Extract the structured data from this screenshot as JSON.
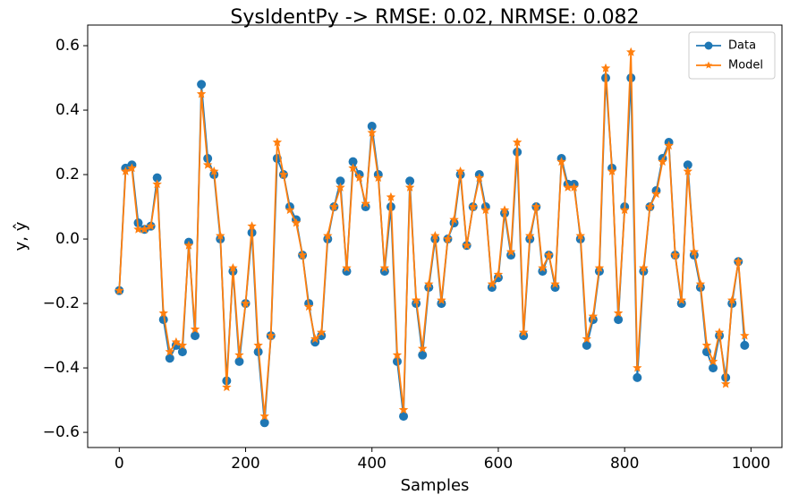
{
  "chart_data": {
    "type": "line",
    "title": "SysIdentPy -> RMSE: 0.02, NRMSE: 0.082",
    "x_label": "Samples",
    "y_label": "y, ŷ",
    "x": [
      0,
      10,
      20,
      30,
      40,
      50,
      60,
      70,
      80,
      90,
      100,
      110,
      120,
      130,
      140,
      150,
      160,
      170,
      180,
      190,
      200,
      210,
      220,
      230,
      240,
      250,
      260,
      270,
      280,
      290,
      300,
      310,
      320,
      330,
      340,
      350,
      360,
      370,
      380,
      390,
      400,
      410,
      420,
      430,
      440,
      450,
      460,
      470,
      480,
      490,
      500,
      510,
      520,
      530,
      540,
      550,
      560,
      570,
      580,
      590,
      600,
      610,
      620,
      630,
      640,
      650,
      660,
      670,
      680,
      690,
      700,
      710,
      720,
      730,
      740,
      750,
      760,
      770,
      780,
      790,
      800,
      810,
      820,
      830,
      840,
      850,
      860,
      870,
      880,
      890,
      900,
      910,
      920,
      930,
      940,
      950,
      960,
      970,
      980,
      990
    ],
    "series": [
      {
        "name": "Data",
        "color": "#1f77b4",
        "marker": "circle",
        "values": [
          -0.16,
          0.22,
          0.23,
          0.05,
          0.03,
          0.04,
          0.19,
          -0.25,
          -0.37,
          -0.33,
          -0.35,
          -0.01,
          -0.3,
          0.48,
          0.25,
          0.2,
          0.0,
          -0.44,
          -0.1,
          -0.38,
          -0.2,
          0.02,
          -0.35,
          -0.57,
          -0.3,
          0.25,
          0.2,
          0.1,
          0.06,
          -0.05,
          -0.2,
          -0.32,
          -0.3,
          0.0,
          0.1,
          0.18,
          -0.1,
          0.24,
          0.2,
          0.1,
          0.35,
          0.2,
          -0.1,
          0.1,
          -0.38,
          -0.55,
          0.18,
          -0.2,
          -0.36,
          -0.15,
          0.0,
          -0.2,
          0.0,
          0.05,
          0.2,
          -0.02,
          0.1,
          0.2,
          0.1,
          -0.15,
          -0.12,
          0.08,
          -0.05,
          0.27,
          -0.3,
          0.0,
          0.1,
          -0.1,
          -0.05,
          -0.15,
          0.25,
          0.17,
          0.17,
          0.0,
          -0.33,
          -0.25,
          -0.1,
          0.5,
          0.22,
          -0.25,
          0.1,
          0.5,
          -0.43,
          -0.1,
          0.1,
          0.15,
          0.25,
          0.3,
          -0.05,
          -0.2,
          0.23,
          -0.05,
          -0.15,
          -0.35,
          -0.4,
          -0.3,
          -0.43,
          -0.2,
          -0.07,
          -0.33
        ]
      },
      {
        "name": "Model",
        "color": "#ff7f0e",
        "marker": "star",
        "values": [
          -0.16,
          0.21,
          0.22,
          0.03,
          0.03,
          0.04,
          0.17,
          -0.23,
          -0.35,
          -0.32,
          -0.33,
          -0.02,
          -0.28,
          0.45,
          0.23,
          0.21,
          0.01,
          -0.46,
          -0.09,
          -0.36,
          -0.2,
          0.04,
          -0.33,
          -0.55,
          -0.3,
          0.3,
          0.2,
          0.09,
          0.05,
          -0.05,
          -0.21,
          -0.31,
          -0.29,
          0.01,
          0.1,
          0.16,
          -0.09,
          0.22,
          0.19,
          0.11,
          0.33,
          0.19,
          -0.09,
          0.13,
          -0.36,
          -0.53,
          0.16,
          -0.19,
          -0.34,
          -0.14,
          0.01,
          -0.19,
          0.0,
          0.06,
          0.21,
          -0.02,
          0.1,
          0.19,
          0.09,
          -0.14,
          -0.11,
          0.09,
          -0.04,
          0.3,
          -0.29,
          0.01,
          0.1,
          -0.09,
          -0.05,
          -0.14,
          0.24,
          0.16,
          0.16,
          0.01,
          -0.31,
          -0.24,
          -0.09,
          0.53,
          0.21,
          -0.23,
          0.09,
          0.58,
          -0.4,
          -0.09,
          0.1,
          0.14,
          0.24,
          0.29,
          -0.05,
          -0.19,
          0.21,
          -0.04,
          -0.14,
          -0.33,
          -0.38,
          -0.29,
          -0.45,
          -0.19,
          -0.07,
          -0.3
        ]
      }
    ],
    "xlim": [
      -50,
      1049
    ],
    "ylim": [
      -0.647,
      0.664
    ],
    "xticks": [
      0,
      200,
      400,
      600,
      800,
      1000
    ],
    "yticks": [
      {
        "value": -0.6,
        "label": "−0.6"
      },
      {
        "value": -0.4,
        "label": "−0.4"
      },
      {
        "value": -0.2,
        "label": "−0.2"
      },
      {
        "value": 0.0,
        "label": "0.0"
      },
      0.2,
      0.4,
      0.6
    ],
    "legend": "upper right",
    "grid": false
  }
}
